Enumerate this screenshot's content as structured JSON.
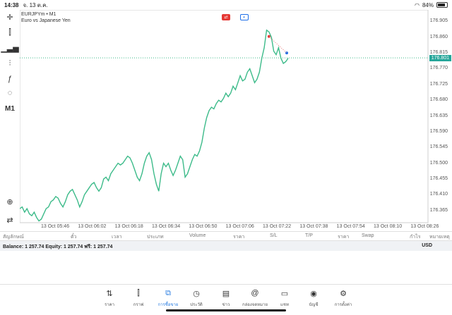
{
  "status": {
    "time": "14:38",
    "date": "จ. 13 ต.ค.",
    "battery": "84%",
    "battery_level": 0.84
  },
  "toolbar": {
    "crosshair": "crosshair-icon",
    "indicators": "indicators-icon",
    "chart_type": "bar-chart-icon",
    "settings": "sliders-icon",
    "function": "function-icon",
    "objects": "shapes-icon",
    "timeframe": "M1"
  },
  "chart": {
    "symbol": "EURJPYm • M1",
    "description": "Euro vs Japanese Yen",
    "current_price": "176.801",
    "price_ticks": [
      "176.905",
      "176.860",
      "176.815",
      "176.770",
      "176.725",
      "176.680",
      "176.635",
      "176.590",
      "176.545",
      "176.500",
      "176.455",
      "176.410",
      "176.365"
    ],
    "time_ticks": [
      "13 Oct 05:46",
      "13 Oct 06:02",
      "13 Oct 06:18",
      "13 Oct 06:34",
      "13 Oct 06:50",
      "13 Oct 07:06",
      "13 Oct 07:22",
      "13 Oct 07:38",
      "13 Oct 07:54",
      "13 Oct 08:10",
      "13 Oct 08:26"
    ]
  },
  "chart_data": {
    "type": "line",
    "title": "",
    "xlabel": "",
    "ylabel": "",
    "ylim": [
      176.33,
      176.93
    ],
    "series": [
      {
        "values": [
          176.37,
          176.375,
          176.36,
          176.37,
          176.355,
          176.35,
          176.36,
          176.345,
          176.335,
          176.34,
          176.355,
          176.37,
          176.375,
          176.39,
          176.395,
          176.405,
          176.4,
          176.385,
          176.375,
          176.39,
          176.41,
          176.42,
          176.425,
          176.41,
          176.395,
          176.375,
          176.39,
          176.41,
          176.42,
          176.43,
          176.44,
          176.445,
          176.43,
          176.42,
          176.43,
          176.455,
          176.46,
          176.45,
          176.47,
          176.48,
          176.49,
          176.5,
          176.495,
          176.5,
          176.51,
          176.52,
          176.515,
          176.5,
          176.48,
          176.46,
          176.45,
          176.47,
          176.5,
          176.52,
          176.53,
          176.51,
          176.47,
          176.44,
          176.42,
          176.47,
          176.5,
          176.49,
          176.5,
          176.48,
          176.465,
          176.48,
          176.5,
          176.52,
          176.51,
          176.46,
          176.47,
          176.49,
          176.51,
          176.525,
          176.52,
          176.535,
          176.56,
          176.6,
          176.63,
          176.65,
          176.66,
          176.655,
          176.67,
          176.68,
          176.675,
          176.685,
          176.7,
          176.69,
          176.7,
          176.72,
          176.71,
          176.73,
          176.75,
          176.735,
          176.74,
          176.76,
          176.77,
          176.75,
          176.73,
          176.74,
          176.76,
          176.8,
          176.83,
          176.88,
          176.875,
          176.86,
          176.82,
          176.81,
          176.83,
          176.8,
          176.785,
          176.79,
          176.8
        ]
      }
    ],
    "markers": [
      {
        "type": "sell",
        "color": "#e53935",
        "value": 176.862
      },
      {
        "type": "target",
        "color": "#1e6fe8",
        "value": 176.815
      }
    ],
    "line_color": "#3dbb8a",
    "grid": true
  },
  "table": {
    "columns": [
      "สัญลักษณ์",
      "ตั๋ว",
      "เวลา",
      "ประเภท",
      "Volume",
      "ราคา",
      "S/L",
      "T/P",
      "ราคา",
      "Swap",
      "กำไร",
      "หมายเหตุ"
    ]
  },
  "balance": {
    "text": "Balance: 1 257.74 Equity: 1 257.74 ฟรี: 1 257.74",
    "currency": "USD"
  },
  "nav": [
    {
      "label": "ราคา",
      "icon": "arrows-updown-icon"
    },
    {
      "label": "กราฟ",
      "icon": "candles-icon"
    },
    {
      "label": "การซื้อขาย",
      "icon": "trade-chart-icon",
      "active": true
    },
    {
      "label": "ประวัติ",
      "icon": "history-icon"
    },
    {
      "label": "ข่าว",
      "icon": "news-icon"
    },
    {
      "label": "กล่องจดหมาย",
      "icon": "at-icon"
    },
    {
      "label": "แชท",
      "icon": "chat-icon"
    },
    {
      "label": "บัญชี",
      "icon": "account-icon"
    },
    {
      "label": "การตั้งค่า",
      "icon": "gear-icon"
    }
  ]
}
